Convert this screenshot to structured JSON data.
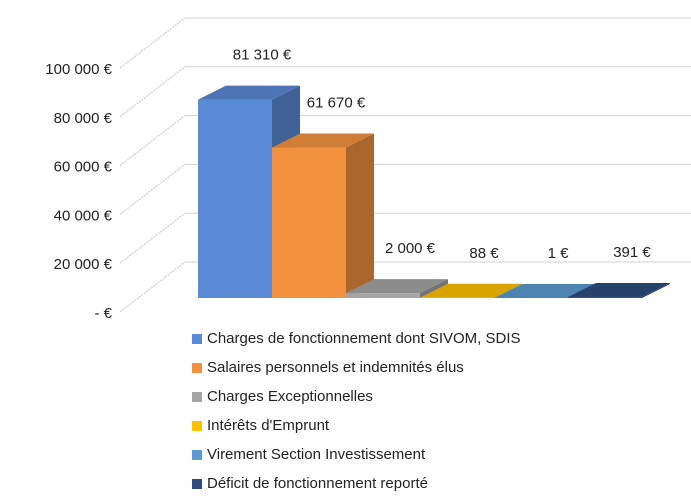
{
  "chart_data": {
    "type": "bar",
    "series": [
      {
        "name": "Charges de fonctionnement dont SIVOM, SDIS",
        "color": "#5a8ad6",
        "values": [
          81310
        ],
        "value_labels": [
          "81 310 €"
        ]
      },
      {
        "name": "Salaires personnels et indemnités élus",
        "color": "#f29240",
        "values": [
          61670
        ],
        "value_labels": [
          "61 670 €"
        ]
      },
      {
        "name": "Charges Exceptionnelles",
        "color": "#a5a5a5",
        "values": [
          2000
        ],
        "value_labels": [
          "2 000 €"
        ]
      },
      {
        "name": "Intérêts d'Emprunt",
        "color": "#ffc000",
        "values": [
          88
        ],
        "value_labels": [
          "88 €"
        ]
      },
      {
        "name": "Virement Section Investissement",
        "color": "#5c9bd0",
        "values": [
          1
        ],
        "value_labels": [
          "1 €"
        ]
      },
      {
        "name": "Déficit de fonctionnement reporté",
        "color": "#2e4c80",
        "values": [
          391
        ],
        "value_labels": [
          "391 €"
        ]
      }
    ],
    "ylim": [
      0,
      100000
    ],
    "yticks": [
      {
        "value": 0,
        "label": "-   €"
      },
      {
        "value": 20000,
        "label": "20 000 €"
      },
      {
        "value": 40000,
        "label": "40 000 €"
      },
      {
        "value": 60000,
        "label": "60 000 €"
      },
      {
        "value": 80000,
        "label": "80 000 €"
      },
      {
        "value": 100000,
        "label": "100 000 €"
      }
    ],
    "grid": true
  }
}
